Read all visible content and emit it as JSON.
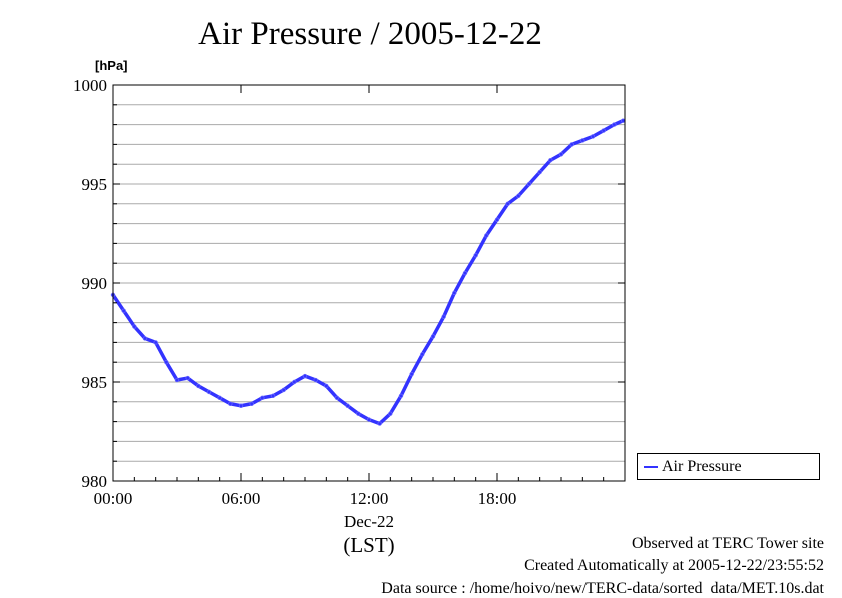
{
  "chart_data": {
    "type": "line",
    "title": "Air Pressure / 2005-12-22",
    "ylabel_unit": "[hPa]",
    "xlabel": "(LST)",
    "date_label": "Dec-22",
    "ylim": [
      980,
      1000
    ],
    "y_ticks": [
      "980",
      "985",
      "990",
      "995",
      "1000"
    ],
    "xlim_hours": [
      0,
      24
    ],
    "x_ticks": [
      "00:00",
      "06:00",
      "12:00",
      "18:00"
    ],
    "grid": true,
    "legend_position": "right, outside plot",
    "series": [
      {
        "name": "Air Pressure",
        "color": "#3333ff",
        "x": [
          "00:00",
          "00:30",
          "01:00",
          "01:30",
          "02:00",
          "02:30",
          "03:00",
          "03:30",
          "04:00",
          "04:30",
          "05:00",
          "05:30",
          "06:00",
          "06:30",
          "07:00",
          "07:30",
          "08:00",
          "08:30",
          "09:00",
          "09:30",
          "10:00",
          "10:30",
          "11:00",
          "11:30",
          "12:00",
          "12:30",
          "13:00",
          "13:30",
          "14:00",
          "14:30",
          "15:00",
          "15:30",
          "16:00",
          "16:30",
          "17:00",
          "17:30",
          "18:00",
          "18:30",
          "19:00",
          "19:30",
          "20:00",
          "20:30",
          "21:00",
          "21:30",
          "22:00",
          "22:30",
          "23:00",
          "23:30",
          "23:55"
        ],
        "values": [
          989.4,
          988.6,
          987.8,
          987.2,
          987.0,
          986.0,
          985.1,
          985.2,
          984.8,
          984.5,
          984.2,
          983.9,
          983.8,
          983.9,
          984.2,
          984.3,
          984.6,
          985.0,
          985.3,
          985.1,
          984.8,
          984.2,
          983.8,
          983.4,
          983.1,
          982.9,
          983.4,
          984.3,
          985.4,
          986.4,
          987.3,
          988.3,
          989.5,
          990.5,
          991.4,
          992.4,
          993.2,
          994.0,
          994.4,
          995.0,
          995.6,
          996.2,
          996.5,
          997.0,
          997.2,
          997.4,
          997.7,
          998.0,
          998.2
        ]
      }
    ]
  },
  "footer": {
    "observed": "Observed at TERC Tower site",
    "created": "Created Automatically at 2005-12-22/23:55:52",
    "source": "Data source : /home/hoivo/new/TERC-data/sorted  data/MET.10s.dat"
  }
}
